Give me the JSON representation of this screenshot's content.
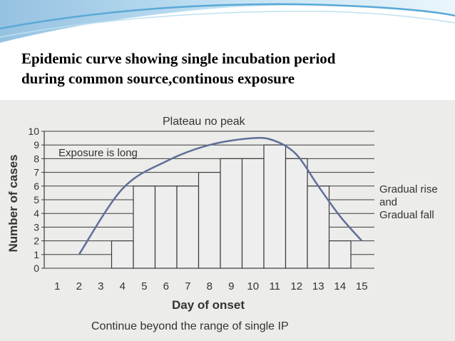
{
  "slide": {
    "title_line1": "Epidemic curve showing single incubation period",
    "title_line2": "during common source,continous exposure",
    "accent_color": "#5aa9d6"
  },
  "chart_data": {
    "type": "bar",
    "categories": [
      "1",
      "2",
      "3",
      "4",
      "5",
      "6",
      "7",
      "8",
      "9",
      "10",
      "11",
      "12",
      "13",
      "14",
      "15"
    ],
    "values": [
      0,
      0,
      0,
      2,
      6,
      6,
      6,
      7,
      8,
      8,
      9,
      8,
      6,
      2,
      0
    ],
    "xlabel": "Day of onset",
    "ylabel": "Number of cases",
    "ylim": [
      0,
      10
    ],
    "yticks": [
      "0",
      "1",
      "2",
      "3",
      "4",
      "5",
      "6",
      "7",
      "8",
      "9",
      "10"
    ],
    "grid": true,
    "curve": {
      "x": [
        2,
        4,
        6,
        8,
        10,
        11,
        12,
        13,
        14,
        15
      ],
      "y": [
        1,
        5.8,
        7.8,
        9,
        9.5,
        9.3,
        8.3,
        6,
        3.8,
        2
      ]
    },
    "annotations": {
      "top": "Plateau no peak",
      "exposure": "Exposure is long",
      "right_line1": "Gradual rise",
      "right_line2": "and",
      "right_line3": "Gradual fall",
      "bottom": "Continue beyond the range of single IP"
    },
    "bar_color": "#eeeeef",
    "curve_color": "#5f6f99"
  }
}
